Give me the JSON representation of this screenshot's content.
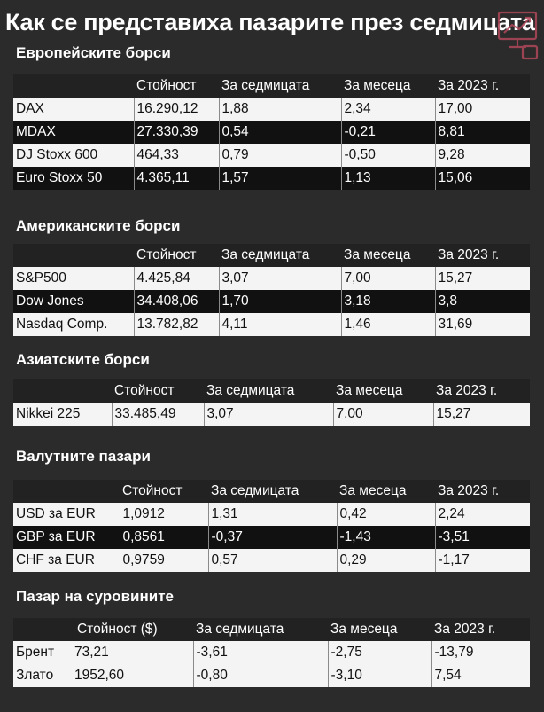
{
  "title": "Как се представиха пазарите през седмицата",
  "header_cols": [
    "Стойност",
    "За седмицата",
    "За месеца",
    "За 2023 г."
  ],
  "sections": [
    {
      "title": "Европейските борси",
      "rows": [
        [
          "DAX",
          "16.290,12",
          "1,88",
          "2,34",
          "17,00"
        ],
        [
          "MDAX",
          "27.330,39",
          "0,54",
          "-0,21",
          "8,81"
        ],
        [
          "DJ Stoxx 600",
          "464,33",
          "0,79",
          "-0,50",
          "9,28"
        ],
        [
          "Euro Stoxx 50",
          "4.365,11",
          "1,57",
          "1,13",
          "15,06"
        ]
      ]
    },
    {
      "title": "Американските борси",
      "rows": [
        [
          "S&P500",
          "4.425,84",
          "3,07",
          "7,00",
          "15,27"
        ],
        [
          "Dow Jones",
          "34.408,06",
          "1,70",
          "3,18",
          "3,8"
        ],
        [
          "Nasdaq Comp.",
          "13.782,82",
          "4,11",
          "1,46",
          "31,69"
        ]
      ]
    },
    {
      "title": "Азиатските борси",
      "rows": [
        [
          "Nikkei 225",
          "33.485,49",
          "3,07",
          "7,00",
          "15,27"
        ]
      ]
    },
    {
      "title": "Валутните пазари",
      "rows": [
        [
          "USD за EUR",
          "1,0912",
          "1,31",
          "0,42",
          "2,24"
        ],
        [
          "GBP за EUR",
          "0,8561",
          "-0,37",
          "-1,43",
          "-3,51"
        ],
        [
          "CHF за EUR",
          "0,9759",
          "0,57",
          "0,29",
          "-1,17"
        ]
      ]
    },
    {
      "title": "Пазар на суровините",
      "header_value": "Стойност ($)",
      "rows": [
        [
          "Брент",
          "73,21",
          "-3,61",
          "-2,75",
          "-13,79"
        ],
        [
          "Злато",
          "1952,60",
          "-0,80",
          "-3,10",
          "7,54"
        ]
      ]
    }
  ]
}
